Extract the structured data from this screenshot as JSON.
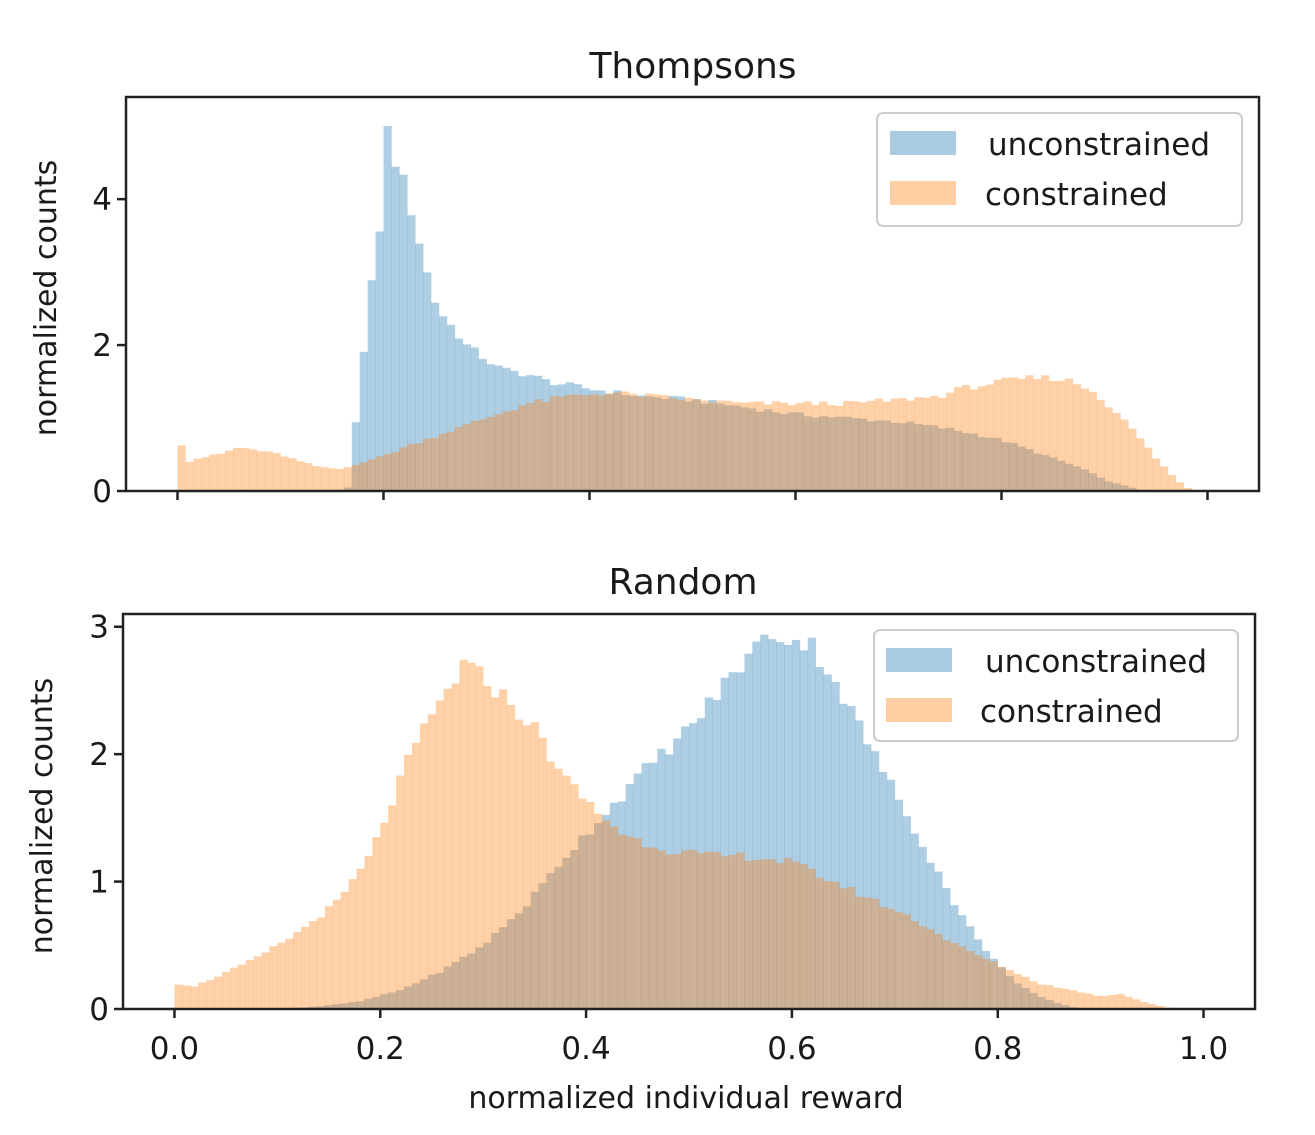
{
  "colors": {
    "unconstrained": "#1f77b4",
    "constrained": "#ff7f0e"
  },
  "chart_data": [
    {
      "type": "histogram",
      "title": "Thompsons",
      "xlabel": "",
      "ylabel": "normalized counts",
      "xlim": [
        -0.05,
        1.05
      ],
      "ylim": [
        0,
        5.4
      ],
      "yticks": [
        "0",
        "2",
        "4"
      ],
      "xticks": [],
      "grid": false,
      "legend_position": "top-right",
      "series": [
        {
          "name": "unconstrained",
          "color_key": "unconstrained",
          "points": [
            [
              0.165,
              0
            ],
            [
              0.17,
              0.6
            ],
            [
              0.18,
              1.8
            ],
            [
              0.19,
              3.0
            ],
            [
              0.2,
              4.0
            ],
            [
              0.205,
              5.2
            ],
            [
              0.21,
              4.6
            ],
            [
              0.22,
              4.2
            ],
            [
              0.23,
              3.7
            ],
            [
              0.24,
              3.1
            ],
            [
              0.25,
              2.6
            ],
            [
              0.26,
              2.35
            ],
            [
              0.27,
              2.2
            ],
            [
              0.28,
              2.0
            ],
            [
              0.29,
              1.9
            ],
            [
              0.3,
              1.8
            ],
            [
              0.31,
              1.7
            ],
            [
              0.32,
              1.65
            ],
            [
              0.34,
              1.6
            ],
            [
              0.36,
              1.5
            ],
            [
              0.38,
              1.45
            ],
            [
              0.4,
              1.4
            ],
            [
              0.45,
              1.3
            ],
            [
              0.5,
              1.25
            ],
            [
              0.55,
              1.15
            ],
            [
              0.6,
              1.05
            ],
            [
              0.65,
              1.0
            ],
            [
              0.7,
              0.95
            ],
            [
              0.75,
              0.85
            ],
            [
              0.8,
              0.7
            ],
            [
              0.85,
              0.45
            ],
            [
              0.88,
              0.3
            ],
            [
              0.9,
              0.15
            ],
            [
              0.92,
              0.07
            ],
            [
              0.94,
              0.0
            ]
          ]
        },
        {
          "name": "constrained",
          "color_key": "constrained",
          "points": [
            [
              0.0,
              0.95
            ],
            [
              0.005,
              0.55
            ],
            [
              0.01,
              0.4
            ],
            [
              0.02,
              0.45
            ],
            [
              0.04,
              0.5
            ],
            [
              0.06,
              0.6
            ],
            [
              0.08,
              0.55
            ],
            [
              0.1,
              0.5
            ],
            [
              0.12,
              0.4
            ],
            [
              0.14,
              0.32
            ],
            [
              0.16,
              0.3
            ],
            [
              0.18,
              0.4
            ],
            [
              0.2,
              0.48
            ],
            [
              0.22,
              0.6
            ],
            [
              0.26,
              0.8
            ],
            [
              0.3,
              1.0
            ],
            [
              0.34,
              1.2
            ],
            [
              0.38,
              1.3
            ],
            [
              0.42,
              1.35
            ],
            [
              0.46,
              1.3
            ],
            [
              0.5,
              1.25
            ],
            [
              0.55,
              1.2
            ],
            [
              0.6,
              1.2
            ],
            [
              0.65,
              1.2
            ],
            [
              0.7,
              1.25
            ],
            [
              0.74,
              1.3
            ],
            [
              0.76,
              1.4
            ],
            [
              0.78,
              1.45
            ],
            [
              0.8,
              1.5
            ],
            [
              0.83,
              1.55
            ],
            [
              0.85,
              1.55
            ],
            [
              0.87,
              1.5
            ],
            [
              0.89,
              1.35
            ],
            [
              0.91,
              1.1
            ],
            [
              0.93,
              0.8
            ],
            [
              0.95,
              0.45
            ],
            [
              0.97,
              0.15
            ],
            [
              0.985,
              0.0
            ]
          ]
        }
      ]
    },
    {
      "type": "histogram",
      "title": "Random",
      "xlabel": "normalized individual reward",
      "ylabel": "normalized counts",
      "xlim": [
        -0.05,
        1.05
      ],
      "ylim": [
        0,
        3.1
      ],
      "yticks": [
        "0",
        "1",
        "2",
        "3"
      ],
      "xticks": [
        "0.0",
        "0.2",
        "0.4",
        "0.6",
        "0.8",
        "1.0"
      ],
      "grid": false,
      "legend_position": "top-right",
      "series": [
        {
          "name": "unconstrained",
          "color_key": "unconstrained",
          "points": [
            [
              0.1,
              0
            ],
            [
              0.14,
              0.02
            ],
            [
              0.18,
              0.06
            ],
            [
              0.22,
              0.15
            ],
            [
              0.26,
              0.3
            ],
            [
              0.3,
              0.5
            ],
            [
              0.34,
              0.8
            ],
            [
              0.38,
              1.2
            ],
            [
              0.42,
              1.55
            ],
            [
              0.46,
              1.9
            ],
            [
              0.5,
              2.2
            ],
            [
              0.53,
              2.5
            ],
            [
              0.56,
              2.8
            ],
            [
              0.58,
              2.95
            ],
            [
              0.6,
              2.9
            ],
            [
              0.62,
              2.85
            ],
            [
              0.64,
              2.6
            ],
            [
              0.66,
              2.3
            ],
            [
              0.68,
              2.0
            ],
            [
              0.7,
              1.7
            ],
            [
              0.72,
              1.4
            ],
            [
              0.74,
              1.1
            ],
            [
              0.76,
              0.8
            ],
            [
              0.78,
              0.55
            ],
            [
              0.8,
              0.35
            ],
            [
              0.82,
              0.2
            ],
            [
              0.84,
              0.1
            ],
            [
              0.86,
              0.04
            ],
            [
              0.88,
              0.0
            ]
          ]
        },
        {
          "name": "constrained",
          "color_key": "constrained",
          "points": [
            [
              0.0,
              0.2
            ],
            [
              0.02,
              0.18
            ],
            [
              0.04,
              0.25
            ],
            [
              0.08,
              0.4
            ],
            [
              0.12,
              0.6
            ],
            [
              0.16,
              0.85
            ],
            [
              0.19,
              1.2
            ],
            [
              0.21,
              1.6
            ],
            [
              0.23,
              2.0
            ],
            [
              0.25,
              2.3
            ],
            [
              0.27,
              2.55
            ],
            [
              0.28,
              2.7
            ],
            [
              0.3,
              2.6
            ],
            [
              0.32,
              2.45
            ],
            [
              0.35,
              2.2
            ],
            [
              0.38,
              1.8
            ],
            [
              0.41,
              1.55
            ],
            [
              0.44,
              1.35
            ],
            [
              0.48,
              1.25
            ],
            [
              0.52,
              1.2
            ],
            [
              0.56,
              1.2
            ],
            [
              0.6,
              1.15
            ],
            [
              0.64,
              1.0
            ],
            [
              0.68,
              0.85
            ],
            [
              0.72,
              0.7
            ],
            [
              0.76,
              0.5
            ],
            [
              0.8,
              0.35
            ],
            [
              0.84,
              0.2
            ],
            [
              0.87,
              0.15
            ],
            [
              0.9,
              0.1
            ],
            [
              0.92,
              0.12
            ],
            [
              0.94,
              0.06
            ],
            [
              0.97,
              0.0
            ]
          ]
        }
      ]
    }
  ]
}
